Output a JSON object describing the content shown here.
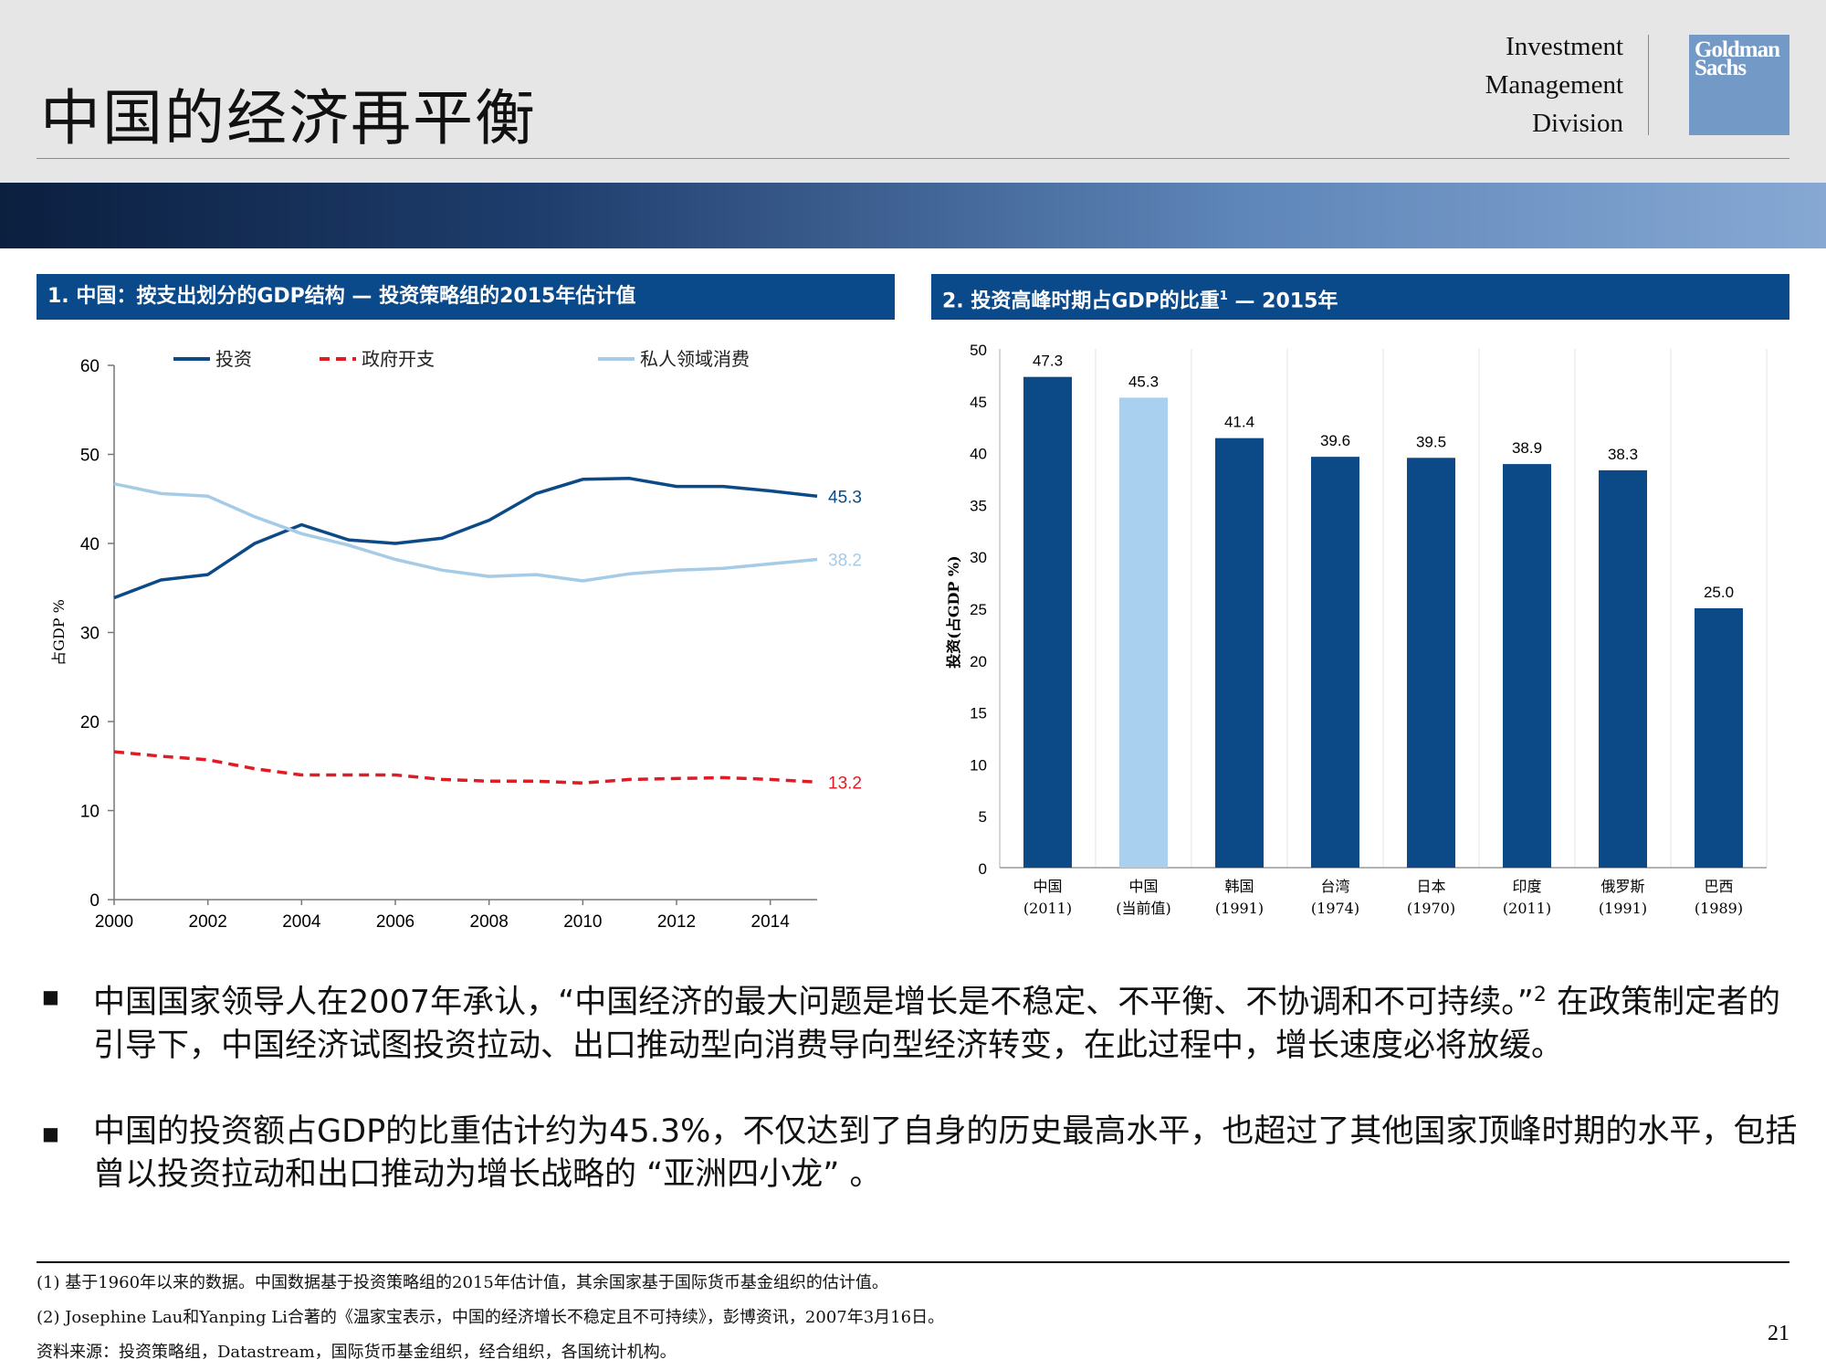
{
  "header": {
    "title": "中国的经济再平衡",
    "division_lines": [
      "Investment",
      "Management",
      "Division"
    ],
    "logo_lines": [
      "Goldman",
      "Sachs"
    ],
    "logo_color": "#7399c6"
  },
  "panel1": {
    "header": "1. 中国：按支出划分的GDP结构 — 投资策略组的2015年估计值"
  },
  "panel2": {
    "header_main": "2. 投资高峰时期占GDP的比重",
    "header_sup": "1",
    "header_rest": " — 2015年"
  },
  "chart_data": [
    {
      "type": "line",
      "ylabel": "占GDP %",
      "ylim": [
        0,
        60
      ],
      "yticks": [
        0,
        10,
        20,
        30,
        40,
        50,
        60
      ],
      "xlim": [
        2000,
        2015
      ],
      "xticks": [
        2000,
        2002,
        2004,
        2006,
        2008,
        2010,
        2012,
        2014
      ],
      "x": [
        2000,
        2001,
        2002,
        2003,
        2004,
        2005,
        2006,
        2007,
        2008,
        2009,
        2010,
        2011,
        2012,
        2013,
        2014,
        2015
      ],
      "series": [
        {
          "name": "投资",
          "color": "#0b4a86",
          "dashed": false,
          "end_label": "45.3",
          "values": [
            33.9,
            35.9,
            36.5,
            40.0,
            42.1,
            40.4,
            40.0,
            40.6,
            42.6,
            45.6,
            47.2,
            47.3,
            46.4,
            46.4,
            45.9,
            45.3
          ]
        },
        {
          "name": "政府开支",
          "color": "#e01b24",
          "dashed": true,
          "end_label": "13.2",
          "values": [
            16.6,
            16.1,
            15.7,
            14.7,
            14.0,
            14.0,
            14.0,
            13.5,
            13.3,
            13.3,
            13.1,
            13.5,
            13.6,
            13.7,
            13.5,
            13.2
          ]
        },
        {
          "name": "私人领域消费",
          "color": "#a6cbe6",
          "dashed": false,
          "end_label": "38.2",
          "values": [
            46.7,
            45.6,
            45.3,
            43.0,
            41.1,
            39.8,
            38.2,
            37.0,
            36.3,
            36.5,
            35.8,
            36.6,
            37.0,
            37.2,
            37.7,
            38.2
          ]
        }
      ]
    },
    {
      "type": "bar",
      "ylabel": "投资(占GDP %)",
      "ylim": [
        0,
        50
      ],
      "yticks": [
        0,
        5,
        10,
        15,
        20,
        25,
        30,
        35,
        40,
        45,
        50
      ],
      "categories": [
        "中国",
        "中国",
        "韩国",
        "台湾",
        "日本",
        "印度",
        "俄罗斯",
        "巴西"
      ],
      "sublabels": [
        "(2011)",
        "(当前值)",
        "(1991)",
        "(1974)",
        "(1970)",
        "(2011)",
        "(1991)",
        "(1989)"
      ],
      "values": [
        47.3,
        45.3,
        41.4,
        39.6,
        39.5,
        38.9,
        38.3,
        25.0
      ],
      "value_labels": [
        "47.3",
        "45.3",
        "41.4",
        "39.6",
        "39.5",
        "38.9",
        "38.3",
        "25.0"
      ],
      "bar_colors": [
        "#0b4a86",
        "#a9d0ee",
        "#0b4a86",
        "#0b4a86",
        "#0b4a86",
        "#0b4a86",
        "#0b4a86",
        "#0b4a86"
      ]
    }
  ],
  "bullets": [
    {
      "text": "中国国家领导人在2007年承认，“中国经济的最大问题是增长是不稳定、不平衡、不协调和不可持续。”",
      "sup": "2",
      "rest": " 在政策制定者的引导下，中国经济试图投资拉动、出口推动型向消费导向型经济转变，在此过程中，增长速度必将放缓。"
    },
    {
      "text": "中国的投资额占GDP的比重估计约为45.3%，不仅达到了自身的历史最高水平，也超过了其他国家顶峰时期的水平，包括曾以投资拉动和出口推动为增长战略的 “亚洲四小龙” 。",
      "sup": "",
      "rest": ""
    }
  ],
  "footnotes": [
    "(1) 基于1960年以来的数据。中国数据基于投资策略组的2015年估计值，其余国家基于国际货币基金组织的估计值。",
    "(2) Josephine Lau和Yanping Li合著的《温家宝表示，中国的经济增长不稳定且不可持续》，彭博资讯，2007年3月16日。",
    "资料来源：投资策略组，Datastream，国际货币基金组织，经合组织，各国统计机构。"
  ],
  "page_number": "21"
}
